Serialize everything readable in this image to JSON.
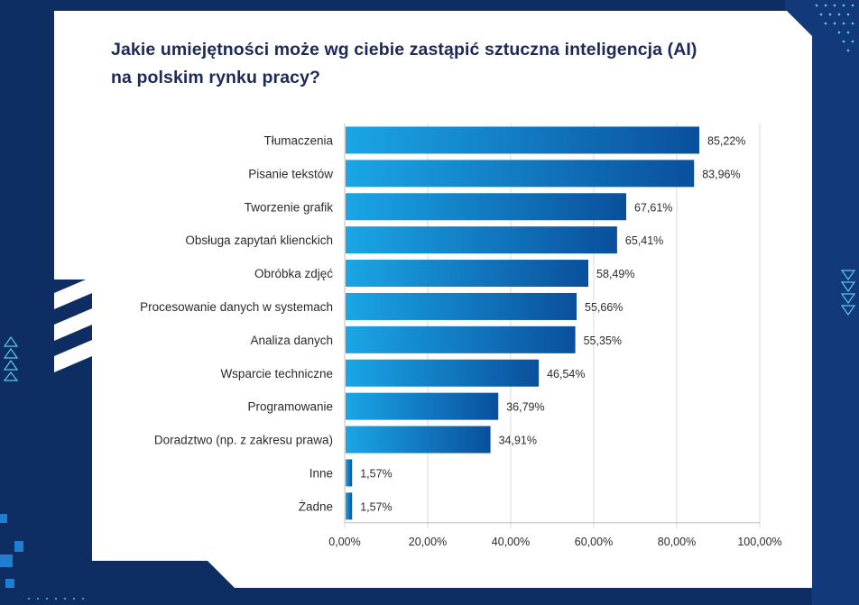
{
  "chart_data": {
    "type": "bar",
    "orientation": "horizontal",
    "title_lines": [
      "Jakie umiejętności może wg ciebie zastąpić sztuczna inteligencja (AI)",
      "na polskim rynku pracy?"
    ],
    "categories": [
      "Tłumaczenia",
      "Pisanie tekstów",
      "Tworzenie grafik",
      "Obsługa zapytań klienckich",
      "Obróbka zdjęć",
      "Procesowanie danych w systemach",
      "Analiza danych",
      "Wsparcie techniczne",
      "Programowanie",
      "Doradztwo (np. z zakresu prawa)",
      "Inne",
      "Żadne"
    ],
    "values": [
      85.22,
      83.96,
      67.61,
      65.41,
      58.49,
      55.66,
      55.35,
      46.54,
      36.79,
      34.91,
      1.57,
      1.57
    ],
    "value_labels": [
      "85,22%",
      "83,96%",
      "67,61%",
      "65,41%",
      "58,49%",
      "55,66%",
      "55,35%",
      "46,54%",
      "36,79%",
      "34,91%",
      "1,57%",
      "1,57%"
    ],
    "xlim": [
      0,
      100
    ],
    "xticks": [
      0,
      20,
      40,
      60,
      80,
      100
    ],
    "xtick_labels": [
      "0,00%",
      "20,00%",
      "40,00%",
      "60,00%",
      "80,00%",
      "100,00%"
    ],
    "xlabel": "",
    "ylabel": "",
    "grid": true,
    "legend": "none",
    "colors": {
      "bar_start": "#1aa6e6",
      "bar_end": "#0a4f9c",
      "background": "#0d2d63",
      "card": "#ffffff",
      "title": "#1d2a57",
      "accent": "#5bc8f2"
    }
  }
}
